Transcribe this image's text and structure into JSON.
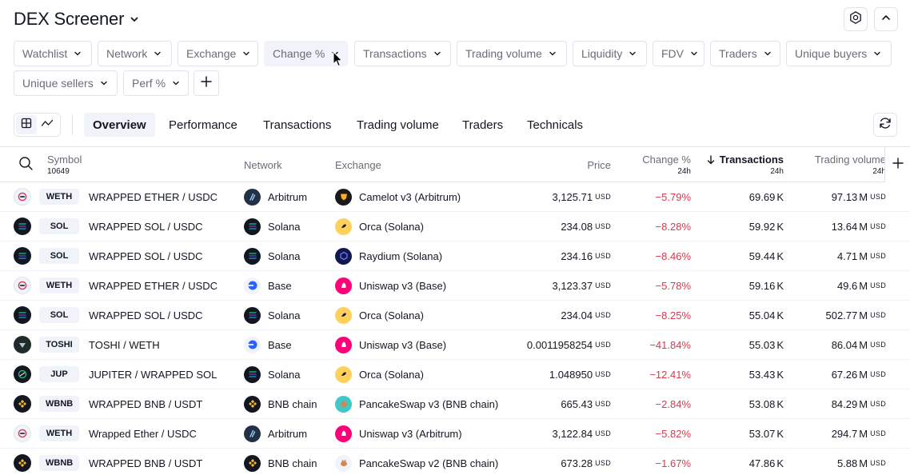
{
  "header": {
    "title": "DEX Screener"
  },
  "filters": [
    {
      "label": "Watchlist",
      "left": 0
    },
    {
      "label": "Network"
    },
    {
      "label": "Exchange"
    },
    {
      "label": "Change %",
      "active": true
    },
    {
      "label": "Transactions"
    },
    {
      "label": "Trading volume"
    },
    {
      "label": "Liquidity"
    },
    {
      "label": "FDV"
    },
    {
      "label": "Traders"
    },
    {
      "label": "Unique buyers"
    },
    {
      "label": "Unique sellers"
    },
    {
      "label": "Perf %"
    }
  ],
  "tabs": [
    "Overview",
    "Performance",
    "Transactions",
    "Trading volume",
    "Traders",
    "Technicals"
  ],
  "columns": {
    "symbol": "Symbol",
    "symbol_count": "10649",
    "network": "Network",
    "exchange": "Exchange",
    "price": "Price",
    "change": "Change %",
    "change_sub": "24h",
    "transactions": "Transactions",
    "transactions_sub": "24h",
    "volume": "Trading volume",
    "volume_sub": "24h"
  },
  "unit_usd": "USD",
  "rows": [
    {
      "ticker": "WETH",
      "pair": "WRAPPED ETHER / USDC",
      "network": "Arbitrum",
      "exchange": "Camelot v3 (Arbitrum)",
      "price": "3,125.71",
      "change": "−5.79%",
      "tx": "69.69",
      "tx_unit": "K",
      "vol": "97.13",
      "vol_unit": "M"
    },
    {
      "ticker": "SOL",
      "pair": "WRAPPED SOL / USDC",
      "network": "Solana",
      "exchange": "Orca (Solana)",
      "price": "234.08",
      "change": "−8.28%",
      "tx": "59.92",
      "tx_unit": "K",
      "vol": "13.64",
      "vol_unit": "M"
    },
    {
      "ticker": "SOL",
      "pair": "WRAPPED SOL / USDC",
      "network": "Solana",
      "exchange": "Raydium (Solana)",
      "price": "234.16",
      "change": "−8.46%",
      "tx": "59.44",
      "tx_unit": "K",
      "vol": "4.71",
      "vol_unit": "M"
    },
    {
      "ticker": "WETH",
      "pair": "WRAPPED ETHER / USDC",
      "network": "Base",
      "exchange": "Uniswap v3 (Base)",
      "price": "3,123.37",
      "change": "−5.78%",
      "tx": "59.16",
      "tx_unit": "K",
      "vol": "49.6",
      "vol_unit": "M"
    },
    {
      "ticker": "SOL",
      "pair": "WRAPPED SOL / USDC",
      "network": "Solana",
      "exchange": "Orca (Solana)",
      "price": "234.04",
      "change": "−8.25%",
      "tx": "55.04",
      "tx_unit": "K",
      "vol": "502.77",
      "vol_unit": "M"
    },
    {
      "ticker": "TOSHI",
      "pair": "TOSHI / WETH",
      "network": "Base",
      "exchange": "Uniswap v3 (Base)",
      "price": "0.0011958254",
      "change": "−41.84%",
      "tx": "55.03",
      "tx_unit": "K",
      "vol": "86.04",
      "vol_unit": "M"
    },
    {
      "ticker": "JUP",
      "pair": "JUPITER / WRAPPED SOL",
      "network": "Solana",
      "exchange": "Orca (Solana)",
      "price": "1.048950",
      "change": "−12.41%",
      "tx": "53.43",
      "tx_unit": "K",
      "vol": "67.26",
      "vol_unit": "M"
    },
    {
      "ticker": "WBNB",
      "pair": "WRAPPED BNB / USDT",
      "network": "BNB chain",
      "exchange": "PancakeSwap v3 (BNB chain)",
      "price": "665.43",
      "change": "−2.84%",
      "tx": "53.08",
      "tx_unit": "K",
      "vol": "84.29",
      "vol_unit": "M"
    },
    {
      "ticker": "WETH",
      "pair": "Wrapped Ether / USDC",
      "network": "Arbitrum",
      "exchange": "Uniswap v3 (Arbitrum)",
      "price": "3,122.84",
      "change": "−5.82%",
      "tx": "53.07",
      "tx_unit": "K",
      "vol": "294.7",
      "vol_unit": "M"
    },
    {
      "ticker": "WBNB",
      "pair": "WRAPPED BNB / USDT",
      "network": "BNB chain",
      "exchange": "PancakeSwap v2 (BNB chain)",
      "price": "673.28",
      "change": "−1.67%",
      "tx": "47.86",
      "tx_unit": "K",
      "vol": "5.88",
      "vol_unit": "M"
    }
  ],
  "colors": {
    "accent_neg": "#d23c50",
    "chip_border": "#e0e3eb",
    "selected_bg": "#f0f3fa"
  }
}
